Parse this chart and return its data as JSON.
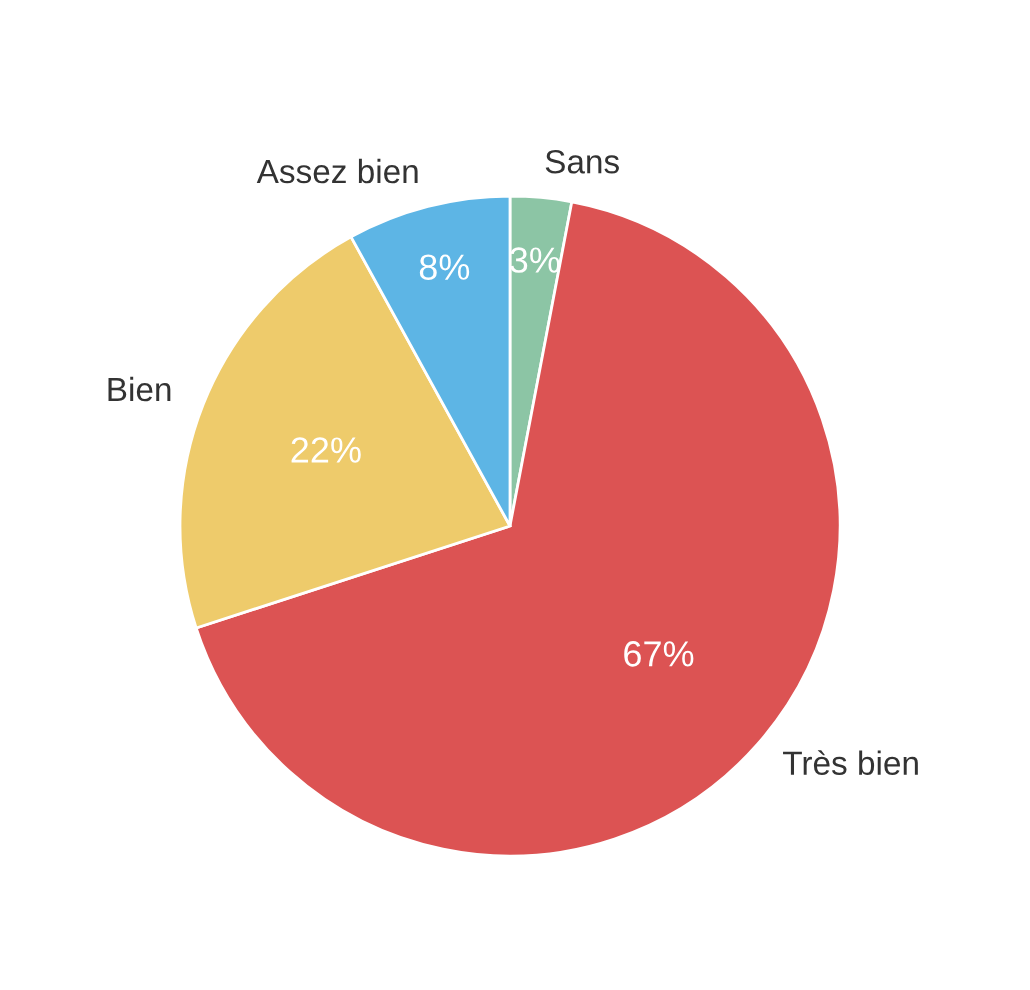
{
  "chart_data": {
    "type": "pie",
    "categories": [
      "Sans",
      "Très bien",
      "Bien",
      "Assez bien"
    ],
    "values": [
      3,
      67,
      22,
      8
    ],
    "colors": [
      "#8cc5a5",
      "#dc5353",
      "#eecb6b",
      "#5db5e5"
    ],
    "value_labels": [
      "3%",
      "67%",
      "22%",
      "8%"
    ]
  }
}
